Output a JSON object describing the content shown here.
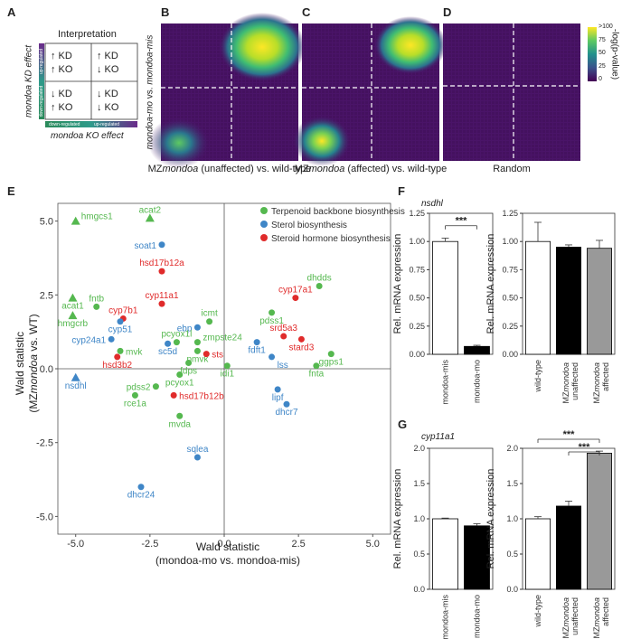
{
  "panels": {
    "A": {
      "letter": "A",
      "title": "Interpretation",
      "yaxis": "mondoa KD effect",
      "xaxis": "mondoa KO effect",
      "bar_x_down": "down-regulated",
      "bar_x_up": "up-regulated",
      "bar_y_down": "down-regulated",
      "bar_y_up": "up-regulated",
      "cells": [
        [
          "KD",
          "KO"
        ],
        [
          "KD",
          "KO"
        ],
        [
          "KD",
          "KO"
        ],
        [
          "KD",
          "KO"
        ]
      ],
      "arrows": [
        [
          "up",
          "up"
        ],
        [
          "up",
          "down"
        ],
        [
          "down",
          "up"
        ],
        [
          "down",
          "down"
        ]
      ]
    },
    "B": {
      "letter": "B",
      "caption_pre": "MZ",
      "caption_ital": "mondoa",
      "caption_post": " (unaffected) vs. wild-type"
    },
    "C": {
      "letter": "C",
      "caption_pre": "MZ",
      "caption_ital": "mondoa",
      "caption_post": " (affected) vs. wild-type"
    },
    "D": {
      "letter": "D",
      "caption": "Random"
    },
    "heat_yaxis_a": "mondoa-mo",
    "heat_yaxis_b": " vs. ",
    "heat_yaxis_c": "mondoa-mis",
    "colorbar": {
      "label": "-log(p-value)",
      "ticks": [
        ">100",
        "75",
        "50",
        "25",
        "0"
      ]
    },
    "E": {
      "letter": "E"
    },
    "F": {
      "letter": "F",
      "gene": "nsdhl"
    },
    "G": {
      "letter": "G",
      "gene": "cyp11a1"
    },
    "ylabel_bar": "Rel. mRNA expression",
    "sig": "***"
  },
  "chart_data": [
    {
      "type": "scatter",
      "id": "E",
      "xlabel_line1": "Wald statistic",
      "xlabel_line2": "(mondoa-mo vs. mondoa-mis)",
      "ylabel_line1": "Wald statistic",
      "ylabel_line2_pre": "(MZ",
      "ylabel_line2_ital": "mondoa",
      "ylabel_line2_post": " vs. WT)",
      "xlim": [
        -5.6,
        5.6
      ],
      "ylim": [
        -5.6,
        5.6
      ],
      "xticks": [
        -5.0,
        -2.5,
        0.0,
        2.5,
        5.0
      ],
      "yticks": [
        -5.0,
        -2.5,
        0.0,
        2.5,
        5.0
      ],
      "xtick_labels": [
        "-5.0",
        "-2.5",
        "0.0",
        "2.5",
        "5.0"
      ],
      "ytick_labels": [
        "-5.0",
        "-2.5",
        "0.0",
        "2.5",
        "5.0"
      ],
      "legend": [
        {
          "name": "Terpenoid backbone biosynthesis",
          "color": "#55b84f"
        },
        {
          "name": "Sterol biosynthesis",
          "color": "#3f86c7"
        },
        {
          "name": "Steroid hormone biosynthesis",
          "color": "#e02b2b"
        }
      ],
      "points": [
        {
          "label": "hmgcs1",
          "x": -5.0,
          "y": 5.0,
          "cat": 0,
          "shape": "tri"
        },
        {
          "label": "acat2",
          "x": -2.5,
          "y": 5.1,
          "cat": 0,
          "shape": "tri"
        },
        {
          "label": "acat1",
          "x": -5.1,
          "y": 2.4,
          "cat": 0,
          "shape": "tri"
        },
        {
          "label": "hmgcrb",
          "x": -5.1,
          "y": 1.8,
          "cat": 0,
          "shape": "tri"
        },
        {
          "label": "nsdhl",
          "x": -5.0,
          "y": -0.3,
          "cat": 1,
          "shape": "tri"
        },
        {
          "label": "fntb",
          "x": -4.3,
          "y": 2.1,
          "cat": 0,
          "shape": "dot"
        },
        {
          "label": "soat1",
          "x": -2.1,
          "y": 4.2,
          "cat": 1,
          "shape": "dot"
        },
        {
          "label": "hsd17b12a",
          "x": -2.1,
          "y": 3.3,
          "cat": 2,
          "shape": "dot"
        },
        {
          "label": "cyp7b1",
          "x": -3.4,
          "y": 1.7,
          "cat": 2,
          "shape": "dot"
        },
        {
          "label": "cyp51",
          "x": -3.5,
          "y": 1.6,
          "cat": 1,
          "shape": "dot"
        },
        {
          "label": "cyp11a1",
          "x": -2.1,
          "y": 2.2,
          "cat": 2,
          "shape": "dot"
        },
        {
          "label": "cyp24a1",
          "x": -3.8,
          "y": 1.0,
          "cat": 1,
          "shape": "dot"
        },
        {
          "label": "mvk",
          "x": -3.5,
          "y": 0.6,
          "cat": 0,
          "shape": "dot"
        },
        {
          "label": "hsd3b2",
          "x": -3.6,
          "y": 0.4,
          "cat": 2,
          "shape": "dot"
        },
        {
          "label": "icmt",
          "x": -0.5,
          "y": 1.6,
          "cat": 0,
          "shape": "dot"
        },
        {
          "label": "ebp",
          "x": -0.9,
          "y": 1.4,
          "cat": 1,
          "shape": "dot"
        },
        {
          "label": "pcyox1l",
          "x": -1.6,
          "y": 0.9,
          "cat": 0,
          "shape": "dot"
        },
        {
          "label": "sc5d",
          "x": -1.9,
          "y": 0.85,
          "cat": 1,
          "shape": "dot"
        },
        {
          "label": "zmpste24",
          "x": -0.9,
          "y": 0.9,
          "cat": 0,
          "shape": "dot"
        },
        {
          "label": "pmvk",
          "x": -0.9,
          "y": 0.6,
          "cat": 0,
          "shape": "dot"
        },
        {
          "label": "sts",
          "x": -0.6,
          "y": 0.5,
          "cat": 2,
          "shape": "dot"
        },
        {
          "label": "fdps",
          "x": -1.2,
          "y": 0.2,
          "cat": 0,
          "shape": "dot"
        },
        {
          "label": "idi1",
          "x": 0.1,
          "y": 0.1,
          "cat": 0,
          "shape": "dot"
        },
        {
          "label": "pcyox1",
          "x": -1.5,
          "y": -0.2,
          "cat": 0,
          "shape": "dot"
        },
        {
          "label": "pdss2",
          "x": -2.3,
          "y": -0.6,
          "cat": 0,
          "shape": "dot"
        },
        {
          "label": "hsd17b12b",
          "x": -1.7,
          "y": -0.9,
          "cat": 2,
          "shape": "dot"
        },
        {
          "label": "rce1a",
          "x": -3.0,
          "y": -0.9,
          "cat": 0,
          "shape": "dot"
        },
        {
          "label": "mvda",
          "x": -1.5,
          "y": -1.6,
          "cat": 0,
          "shape": "dot"
        },
        {
          "label": "pdss1",
          "x": 1.6,
          "y": 1.9,
          "cat": 0,
          "shape": "dot"
        },
        {
          "label": "fdft1",
          "x": 1.1,
          "y": 0.9,
          "cat": 1,
          "shape": "dot"
        },
        {
          "label": "srd5a3",
          "x": 2.0,
          "y": 1.1,
          "cat": 2,
          "shape": "dot"
        },
        {
          "label": "stard3",
          "x": 2.6,
          "y": 1.0,
          "cat": 2,
          "shape": "dot"
        },
        {
          "label": "cyp17a1",
          "x": 2.4,
          "y": 2.4,
          "cat": 2,
          "shape": "dot"
        },
        {
          "label": "dhdds",
          "x": 3.2,
          "y": 2.8,
          "cat": 0,
          "shape": "dot"
        },
        {
          "label": "lss",
          "x": 1.6,
          "y": 0.4,
          "cat": 1,
          "shape": "dot"
        },
        {
          "label": "fnta",
          "x": 3.1,
          "y": 0.1,
          "cat": 0,
          "shape": "dot"
        },
        {
          "label": "ggps1",
          "x": 3.6,
          "y": 0.5,
          "cat": 0,
          "shape": "dot"
        },
        {
          "label": "lipf",
          "x": 1.8,
          "y": -0.7,
          "cat": 1,
          "shape": "dot"
        },
        {
          "label": "dhcr7",
          "x": 2.1,
          "y": -1.2,
          "cat": 1,
          "shape": "dot"
        },
        {
          "label": "sqlea",
          "x": -0.9,
          "y": -3.0,
          "cat": 1,
          "shape": "dot"
        },
        {
          "label": "dhcr24",
          "x": -2.8,
          "y": -4.0,
          "cat": 1,
          "shape": "dot"
        }
      ]
    },
    {
      "type": "bar",
      "id": "F-left",
      "categories": [
        "mondoa-mis",
        "mondoa-mo"
      ],
      "values": [
        1.0,
        0.07
      ],
      "errors": [
        0.03,
        0.01
      ],
      "colors": [
        "#ffffff",
        "#000000"
      ],
      "ylim": [
        0,
        1.25
      ],
      "yticks": [
        0,
        0.25,
        0.5,
        0.75,
        1.0,
        1.25
      ],
      "ytick_labels": [
        "0.00",
        "0.25",
        "0.50",
        "0.75",
        "1.00",
        "1.25"
      ],
      "sig": [
        [
          0,
          1,
          "***"
        ]
      ]
    },
    {
      "type": "bar",
      "id": "F-right",
      "categories": [
        "wild-type",
        "MZmondoa unaffected",
        "MZmondoa affected"
      ],
      "values": [
        1.0,
        0.95,
        0.94
      ],
      "errors": [
        0.17,
        0.02,
        0.07
      ],
      "colors": [
        "#ffffff",
        "#000000",
        "#999999"
      ],
      "ylim": [
        0,
        1.25
      ],
      "yticks": [
        0,
        0.25,
        0.5,
        0.75,
        1.0,
        1.25
      ],
      "ytick_labels": [
        "0.00",
        "0.25",
        "0.50",
        "0.75",
        "1.00",
        "1.25"
      ],
      "sig": []
    },
    {
      "type": "bar",
      "id": "G-left",
      "categories": [
        "mondoa-mis",
        "mondoa-mo"
      ],
      "values": [
        1.0,
        0.9
      ],
      "errors": [
        0.01,
        0.03
      ],
      "colors": [
        "#ffffff",
        "#000000"
      ],
      "ylim": [
        0,
        2.0
      ],
      "yticks": [
        0,
        0.5,
        1.0,
        1.5,
        2.0
      ],
      "ytick_labels": [
        "0.0",
        "0.5",
        "1.0",
        "1.5",
        "2.0"
      ],
      "sig": []
    },
    {
      "type": "bar",
      "id": "G-right",
      "categories": [
        "wild-type",
        "MZmondoa unaffected",
        "MZmondoa affected"
      ],
      "values": [
        1.0,
        1.18,
        1.93
      ],
      "errors": [
        0.03,
        0.07,
        0.03
      ],
      "colors": [
        "#ffffff",
        "#000000",
        "#999999"
      ],
      "ylim": [
        0,
        2.0
      ],
      "yticks": [
        0,
        0.5,
        1.0,
        1.5,
        2.0
      ],
      "ytick_labels": [
        "0.0",
        "0.5",
        "1.0",
        "1.5",
        "2.0"
      ],
      "sig": [
        [
          0,
          2,
          "***"
        ],
        [
          1,
          2,
          "***"
        ]
      ]
    }
  ]
}
